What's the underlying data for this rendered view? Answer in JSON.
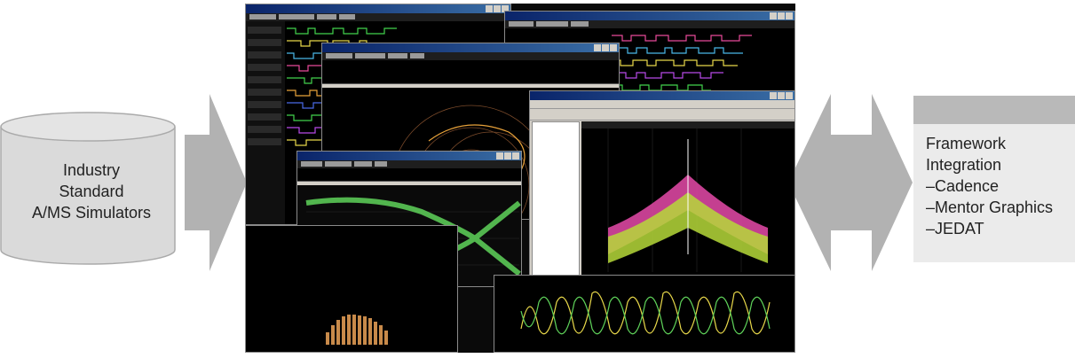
{
  "left_node": {
    "lines": [
      "Industry",
      "Standard",
      "A/MS Simulators"
    ]
  },
  "right_node": {
    "lines": [
      "Framework",
      "Integration",
      "–Cadence",
      "–Mentor Graphics",
      "–JEDAT"
    ]
  },
  "colors": {
    "arrow": "#b2b2b2",
    "cylinder_fill": "#dadada",
    "cylinder_stroke": "#aaaaaa",
    "box_fill": "#ebebeb",
    "box_header": "#b9b9b9",
    "eye_trace": "#5fd35a",
    "spectrum_pink": "#d946a0",
    "spectrum_green": "#b6d93a"
  },
  "icons": {
    "left_arrow": "arrow-right-icon",
    "right_arrow": "double-arrow-icon",
    "cylinder": "database-cylinder-icon"
  }
}
